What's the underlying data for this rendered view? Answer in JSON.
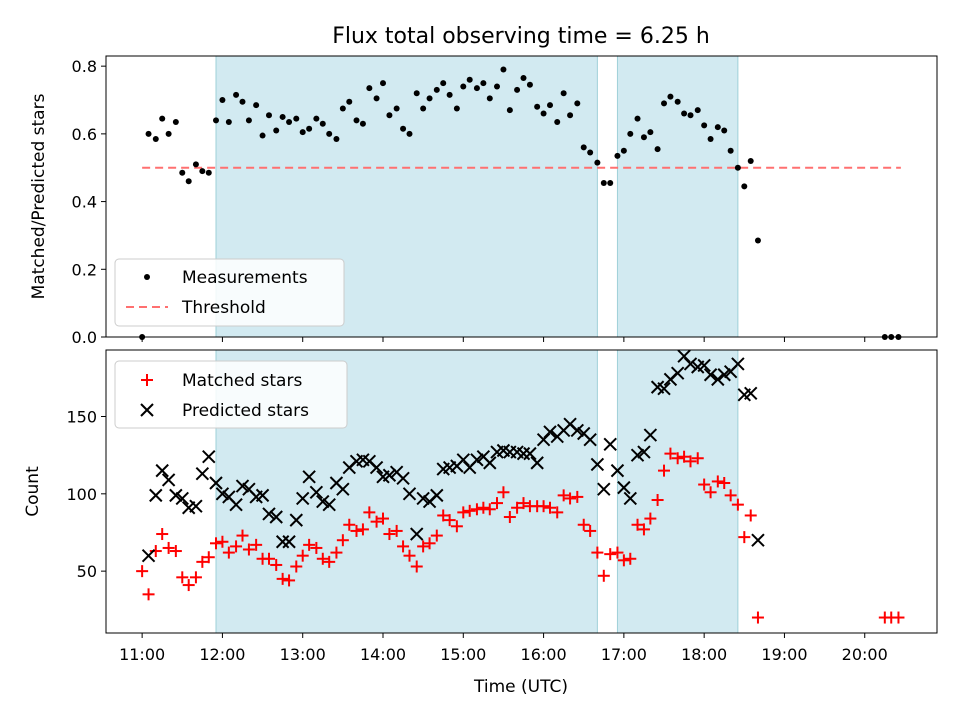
{
  "chart_data": {
    "title": "Flux total observing time = 6.25 h",
    "xlabel": "Time (UTC)",
    "x_ticks": [
      "11:00",
      "12:00",
      "13:00",
      "14:00",
      "15:00",
      "16:00",
      "17:00",
      "18:00",
      "19:00",
      "20:00"
    ],
    "x_range_hours": [
      10.55,
      20.9
    ],
    "shaded_intervals": [
      [
        11.92,
        16.67
      ],
      [
        16.92,
        18.42
      ]
    ],
    "shade_color": "#add8e6",
    "top": {
      "type": "scatter",
      "ylabel": "Matched/Predicted stars",
      "ylim": [
        0,
        0.83
      ],
      "y_ticks": [
        0.0,
        0.2,
        0.4,
        0.6,
        0.8
      ],
      "threshold": 0.5,
      "threshold_color": "#ff7070",
      "legend_position": "lower-left",
      "legend": [
        {
          "label": "Measurements",
          "marker": "dot",
          "color": "#000000"
        },
        {
          "label": "Threshold",
          "marker": "dashed-line",
          "color": "#ff7070"
        }
      ],
      "measurements": [
        [
          11.0,
          0.0
        ],
        [
          11.08,
          0.6
        ],
        [
          11.17,
          0.585
        ],
        [
          11.25,
          0.645
        ],
        [
          11.33,
          0.6
        ],
        [
          11.42,
          0.635
        ],
        [
          11.5,
          0.485
        ],
        [
          11.58,
          0.46
        ],
        [
          11.67,
          0.51
        ],
        [
          11.75,
          0.49
        ],
        [
          11.83,
          0.485
        ],
        [
          11.92,
          0.64
        ],
        [
          12.0,
          0.7
        ],
        [
          12.08,
          0.635
        ],
        [
          12.17,
          0.715
        ],
        [
          12.25,
          0.695
        ],
        [
          12.33,
          0.64
        ],
        [
          12.42,
          0.685
        ],
        [
          12.5,
          0.595
        ],
        [
          12.58,
          0.655
        ],
        [
          12.67,
          0.61
        ],
        [
          12.75,
          0.65
        ],
        [
          12.83,
          0.635
        ],
        [
          12.92,
          0.645
        ],
        [
          13.0,
          0.605
        ],
        [
          13.08,
          0.615
        ],
        [
          13.17,
          0.645
        ],
        [
          13.25,
          0.63
        ],
        [
          13.33,
          0.6
        ],
        [
          13.42,
          0.585
        ],
        [
          13.5,
          0.675
        ],
        [
          13.58,
          0.695
        ],
        [
          13.67,
          0.64
        ],
        [
          13.75,
          0.63
        ],
        [
          13.83,
          0.735
        ],
        [
          13.92,
          0.705
        ],
        [
          14.0,
          0.75
        ],
        [
          14.08,
          0.655
        ],
        [
          14.17,
          0.675
        ],
        [
          14.25,
          0.615
        ],
        [
          14.33,
          0.6
        ],
        [
          14.42,
          0.72
        ],
        [
          14.5,
          0.675
        ],
        [
          14.58,
          0.705
        ],
        [
          14.67,
          0.73
        ],
        [
          14.75,
          0.75
        ],
        [
          14.83,
          0.715
        ],
        [
          14.92,
          0.675
        ],
        [
          15.0,
          0.74
        ],
        [
          15.08,
          0.76
        ],
        [
          15.17,
          0.735
        ],
        [
          15.25,
          0.75
        ],
        [
          15.33,
          0.705
        ],
        [
          15.42,
          0.74
        ],
        [
          15.5,
          0.79
        ],
        [
          15.58,
          0.67
        ],
        [
          15.67,
          0.73
        ],
        [
          15.75,
          0.765
        ],
        [
          15.83,
          0.745
        ],
        [
          15.92,
          0.68
        ],
        [
          16.0,
          0.66
        ],
        [
          16.08,
          0.685
        ],
        [
          16.17,
          0.635
        ],
        [
          16.25,
          0.72
        ],
        [
          16.33,
          0.655
        ],
        [
          16.42,
          0.69
        ],
        [
          16.5,
          0.56
        ],
        [
          16.58,
          0.545
        ],
        [
          16.67,
          0.515
        ],
        [
          16.75,
          0.455
        ],
        [
          16.83,
          0.455
        ],
        [
          16.92,
          0.535
        ],
        [
          17.0,
          0.55
        ],
        [
          17.08,
          0.6
        ],
        [
          17.17,
          0.645
        ],
        [
          17.25,
          0.59
        ],
        [
          17.33,
          0.605
        ],
        [
          17.42,
          0.555
        ],
        [
          17.5,
          0.69
        ],
        [
          17.58,
          0.71
        ],
        [
          17.67,
          0.695
        ],
        [
          17.75,
          0.66
        ],
        [
          17.83,
          0.655
        ],
        [
          17.92,
          0.67
        ],
        [
          18.0,
          0.625
        ],
        [
          18.08,
          0.585
        ],
        [
          18.17,
          0.62
        ],
        [
          18.25,
          0.61
        ],
        [
          18.33,
          0.55
        ],
        [
          18.42,
          0.5
        ],
        [
          18.5,
          0.445
        ],
        [
          18.58,
          0.52
        ],
        [
          18.67,
          0.285
        ],
        [
          20.25,
          0.0
        ],
        [
          20.33,
          0.0
        ],
        [
          20.42,
          0.0
        ]
      ]
    },
    "bottom": {
      "type": "scatter",
      "ylabel": "Count",
      "ylim": [
        10,
        193
      ],
      "y_ticks": [
        50,
        100,
        150
      ],
      "legend_position": "upper-left",
      "legend": [
        {
          "label": "Matched stars",
          "marker": "plus",
          "color": "#ff0000"
        },
        {
          "label": "Predicted stars",
          "marker": "x",
          "color": "#000000"
        }
      ],
      "matched": [
        [
          11.0,
          50
        ],
        [
          11.08,
          35
        ],
        [
          11.17,
          63
        ],
        [
          11.25,
          74
        ],
        [
          11.33,
          65
        ],
        [
          11.42,
          63
        ],
        [
          11.5,
          46
        ],
        [
          11.58,
          41
        ],
        [
          11.67,
          46
        ],
        [
          11.75,
          56
        ],
        [
          11.83,
          59
        ],
        [
          11.92,
          68
        ],
        [
          12.0,
          69
        ],
        [
          12.08,
          62
        ],
        [
          12.17,
          66
        ],
        [
          12.25,
          73
        ],
        [
          12.33,
          64
        ],
        [
          12.42,
          67
        ],
        [
          12.5,
          58
        ],
        [
          12.58,
          58
        ],
        [
          12.67,
          54
        ],
        [
          12.75,
          45
        ],
        [
          12.83,
          44
        ],
        [
          12.92,
          53
        ],
        [
          13.0,
          60
        ],
        [
          13.08,
          67
        ],
        [
          13.17,
          65
        ],
        [
          13.25,
          58
        ],
        [
          13.33,
          56
        ],
        [
          13.42,
          62
        ],
        [
          13.5,
          70
        ],
        [
          13.58,
          80
        ],
        [
          13.67,
          76
        ],
        [
          13.75,
          77
        ],
        [
          13.83,
          88
        ],
        [
          13.92,
          82
        ],
        [
          14.0,
          84
        ],
        [
          14.08,
          74
        ],
        [
          14.17,
          76
        ],
        [
          14.25,
          66
        ],
        [
          14.33,
          60
        ],
        [
          14.42,
          53
        ],
        [
          14.5,
          66
        ],
        [
          14.58,
          68
        ],
        [
          14.67,
          73
        ],
        [
          14.75,
          86
        ],
        [
          14.83,
          83
        ],
        [
          14.92,
          79
        ],
        [
          15.0,
          88
        ],
        [
          15.08,
          89
        ],
        [
          15.17,
          90
        ],
        [
          15.25,
          91
        ],
        [
          15.33,
          90
        ],
        [
          15.42,
          94
        ],
        [
          15.5,
          101
        ],
        [
          15.58,
          85
        ],
        [
          15.67,
          91
        ],
        [
          15.75,
          94
        ],
        [
          15.83,
          92
        ],
        [
          15.92,
          92
        ],
        [
          16.0,
          92
        ],
        [
          16.08,
          91
        ],
        [
          16.17,
          88
        ],
        [
          16.25,
          99
        ],
        [
          16.33,
          97
        ],
        [
          16.42,
          98
        ],
        [
          16.5,
          80
        ],
        [
          16.58,
          76
        ],
        [
          16.67,
          62
        ],
        [
          16.75,
          47
        ],
        [
          16.83,
          61
        ],
        [
          16.92,
          62
        ],
        [
          17.0,
          57
        ],
        [
          17.08,
          58
        ],
        [
          17.17,
          80
        ],
        [
          17.25,
          77
        ],
        [
          17.33,
          84
        ],
        [
          17.42,
          96
        ],
        [
          17.5,
          115
        ],
        [
          17.58,
          126
        ],
        [
          17.67,
          123
        ],
        [
          17.75,
          124
        ],
        [
          17.83,
          121
        ],
        [
          17.92,
          123
        ],
        [
          18.0,
          106
        ],
        [
          18.08,
          101
        ],
        [
          18.17,
          108
        ],
        [
          18.25,
          107
        ],
        [
          18.33,
          99
        ],
        [
          18.42,
          93
        ],
        [
          18.5,
          72
        ],
        [
          18.58,
          86
        ],
        [
          18.67,
          20
        ],
        [
          20.25,
          20
        ],
        [
          20.33,
          20
        ],
        [
          20.42,
          20
        ]
      ],
      "predicted": [
        [
          11.08,
          60
        ],
        [
          11.17,
          99
        ],
        [
          11.25,
          115
        ],
        [
          11.33,
          109
        ],
        [
          11.42,
          99
        ],
        [
          11.5,
          97
        ],
        [
          11.58,
          91
        ],
        [
          11.67,
          92
        ],
        [
          11.75,
          113
        ],
        [
          11.83,
          124
        ],
        [
          11.92,
          107
        ],
        [
          12.0,
          100
        ],
        [
          12.08,
          98
        ],
        [
          12.17,
          93
        ],
        [
          12.25,
          105
        ],
        [
          12.33,
          103
        ],
        [
          12.42,
          98
        ],
        [
          12.5,
          99
        ],
        [
          12.58,
          87
        ],
        [
          12.67,
          85
        ],
        [
          12.75,
          69
        ],
        [
          12.83,
          69
        ],
        [
          12.92,
          83
        ],
        [
          13.0,
          97
        ],
        [
          13.08,
          111
        ],
        [
          13.17,
          101
        ],
        [
          13.25,
          95
        ],
        [
          13.33,
          93
        ],
        [
          13.42,
          107
        ],
        [
          13.5,
          103
        ],
        [
          13.58,
          117
        ],
        [
          13.67,
          121
        ],
        [
          13.75,
          122
        ],
        [
          13.83,
          121
        ],
        [
          13.92,
          117
        ],
        [
          14.0,
          111
        ],
        [
          14.08,
          112
        ],
        [
          14.17,
          114
        ],
        [
          14.25,
          110
        ],
        [
          14.33,
          100
        ],
        [
          14.42,
          74
        ],
        [
          14.5,
          97
        ],
        [
          14.58,
          95
        ],
        [
          14.67,
          99
        ],
        [
          14.75,
          116
        ],
        [
          14.83,
          117
        ],
        [
          14.92,
          118
        ],
        [
          15.0,
          122
        ],
        [
          15.08,
          117
        ],
        [
          15.17,
          122
        ],
        [
          15.25,
          124
        ],
        [
          15.33,
          120
        ],
        [
          15.42,
          127
        ],
        [
          15.5,
          128
        ],
        [
          15.58,
          127
        ],
        [
          15.67,
          127
        ],
        [
          15.75,
          126
        ],
        [
          15.83,
          126
        ],
        [
          15.92,
          120
        ],
        [
          16.0,
          135
        ],
        [
          16.08,
          140
        ],
        [
          16.17,
          137
        ],
        [
          16.25,
          141
        ],
        [
          16.33,
          145
        ],
        [
          16.42,
          141
        ],
        [
          16.5,
          139
        ],
        [
          16.58,
          135
        ],
        [
          16.67,
          119
        ],
        [
          16.75,
          103
        ],
        [
          16.83,
          132
        ],
        [
          16.92,
          115
        ],
        [
          17.0,
          104
        ],
        [
          17.08,
          97
        ],
        [
          17.17,
          125
        ],
        [
          17.25,
          127
        ],
        [
          17.33,
          138
        ],
        [
          17.42,
          169
        ],
        [
          17.5,
          168
        ],
        [
          17.58,
          174
        ],
        [
          17.67,
          178
        ],
        [
          17.75,
          189
        ],
        [
          17.83,
          184
        ],
        [
          17.92,
          182
        ],
        [
          18.0,
          183
        ],
        [
          18.08,
          177
        ],
        [
          18.17,
          174
        ],
        [
          18.25,
          177
        ],
        [
          18.33,
          179
        ],
        [
          18.42,
          184
        ],
        [
          18.5,
          164
        ],
        [
          18.58,
          165
        ],
        [
          18.67,
          70
        ]
      ]
    }
  }
}
